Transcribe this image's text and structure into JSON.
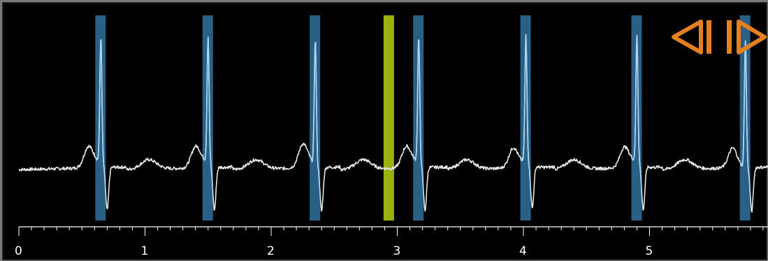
{
  "viewer": {
    "colors": {
      "background": "#000000",
      "trace": "#e6e6e6",
      "beat_marker": "#2a5f86",
      "selected_marker": "#9bb20e",
      "nav_icon": "#e58021",
      "axis": "#ffffff"
    }
  },
  "navigation": {
    "prev_icon": "step-back-icon",
    "next_icon": "step-forward-icon"
  },
  "time_axis": {
    "unit": "s",
    "min": 0,
    "max": 5.95,
    "tick_labels": [
      "0",
      "1",
      "2",
      "3",
      "4",
      "5"
    ],
    "minor_tick_step": 0.1
  },
  "beats": {
    "r_peak_times": [
      0.65,
      1.5,
      2.35,
      3.17,
      4.02,
      4.9,
      5.76
    ],
    "selected_time": 2.93
  },
  "ecg_trace": {
    "baseline": 0,
    "r_amplitude": 1.0,
    "t_amplitude": 0.15,
    "p_amplitude": 0.11
  }
}
